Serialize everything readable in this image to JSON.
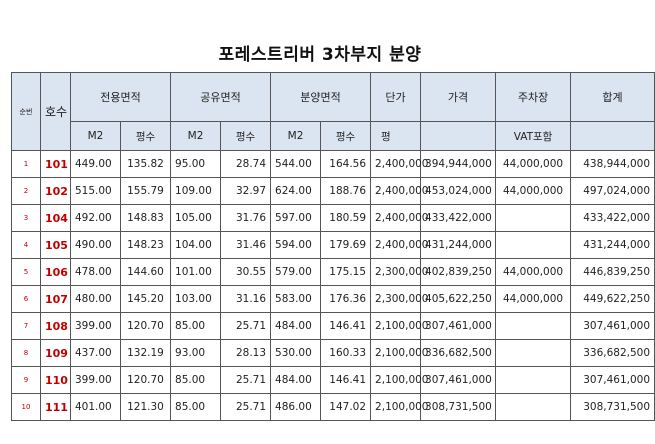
{
  "title": "포레스트리버 3차부지 분양",
  "header": {
    "seq": "순번",
    "unit": "호수",
    "exclusive": "전용면적",
    "common": "공유면적",
    "sale": "분양면적",
    "unit_price": "단가",
    "price": "가격",
    "parking": "주차장",
    "total": "합계"
  },
  "subheader": {
    "m2_a": "M2",
    "py_a": "평수",
    "m2_b": "M2",
    "py_b": "평수",
    "m2_c": "M2",
    "py_c": "평수",
    "unit_price_unit": "평",
    "parking_note": "VAT포함"
  },
  "rows": [
    {
      "seq": "1",
      "unit": "101",
      "ex_m2": "449.00",
      "ex_py": "135.82",
      "co_m2": "95.00",
      "co_py": "28.74",
      "sa_m2": "544.00",
      "sa_py": "164.56",
      "unit_price": "2,400,000",
      "price": "394,944,000",
      "parking": "44,000,000",
      "total": "438,944,000"
    },
    {
      "seq": "2",
      "unit": "102",
      "ex_m2": "515.00",
      "ex_py": "155.79",
      "co_m2": "109.00",
      "co_py": "32.97",
      "sa_m2": "624.00",
      "sa_py": "188.76",
      "unit_price": "2,400,000",
      "price": "453,024,000",
      "parking": "44,000,000",
      "total": "497,024,000"
    },
    {
      "seq": "3",
      "unit": "104",
      "ex_m2": "492.00",
      "ex_py": "148.83",
      "co_m2": "105.00",
      "co_py": "31.76",
      "sa_m2": "597.00",
      "sa_py": "180.59",
      "unit_price": "2,400,000",
      "price": "433,422,000",
      "parking": "",
      "total": "433,422,000"
    },
    {
      "seq": "4",
      "unit": "105",
      "ex_m2": "490.00",
      "ex_py": "148.23",
      "co_m2": "104.00",
      "co_py": "31.46",
      "sa_m2": "594.00",
      "sa_py": "179.69",
      "unit_price": "2,400,000",
      "price": "431,244,000",
      "parking": "",
      "total": "431,244,000"
    },
    {
      "seq": "5",
      "unit": "106",
      "ex_m2": "478.00",
      "ex_py": "144.60",
      "co_m2": "101.00",
      "co_py": "30.55",
      "sa_m2": "579.00",
      "sa_py": "175.15",
      "unit_price": "2,300,000",
      "price": "402,839,250",
      "parking": "44,000,000",
      "total": "446,839,250"
    },
    {
      "seq": "6",
      "unit": "107",
      "ex_m2": "480.00",
      "ex_py": "145.20",
      "co_m2": "103.00",
      "co_py": "31.16",
      "sa_m2": "583.00",
      "sa_py": "176.36",
      "unit_price": "2,300,000",
      "price": "405,622,250",
      "parking": "44,000,000",
      "total": "449,622,250"
    },
    {
      "seq": "7",
      "unit": "108",
      "ex_m2": "399.00",
      "ex_py": "120.70",
      "co_m2": "85.00",
      "co_py": "25.71",
      "sa_m2": "484.00",
      "sa_py": "146.41",
      "unit_price": "2,100,000",
      "price": "307,461,000",
      "parking": "",
      "total": "307,461,000"
    },
    {
      "seq": "8",
      "unit": "109",
      "ex_m2": "437.00",
      "ex_py": "132.19",
      "co_m2": "93.00",
      "co_py": "28.13",
      "sa_m2": "530.00",
      "sa_py": "160.33",
      "unit_price": "2,100,000",
      "price": "336,682,500",
      "parking": "",
      "total": "336,682,500"
    },
    {
      "seq": "9",
      "unit": "110",
      "ex_m2": "399.00",
      "ex_py": "120.70",
      "co_m2": "85.00",
      "co_py": "25.71",
      "sa_m2": "484.00",
      "sa_py": "146.41",
      "unit_price": "2,100,000",
      "price": "307,461,000",
      "parking": "",
      "total": "307,461,000"
    },
    {
      "seq": "10",
      "unit": "111",
      "ex_m2": "401.00",
      "ex_py": "121.30",
      "co_m2": "85.00",
      "co_py": "25.71",
      "sa_m2": "486.00",
      "sa_py": "147.02",
      "unit_price": "2,100,000",
      "price": "308,731,500",
      "parking": "",
      "total": "308,731,500"
    }
  ],
  "colors": {
    "header_bg": "#dbe5f1",
    "unit_text": "#c00000",
    "border": "#555555"
  }
}
